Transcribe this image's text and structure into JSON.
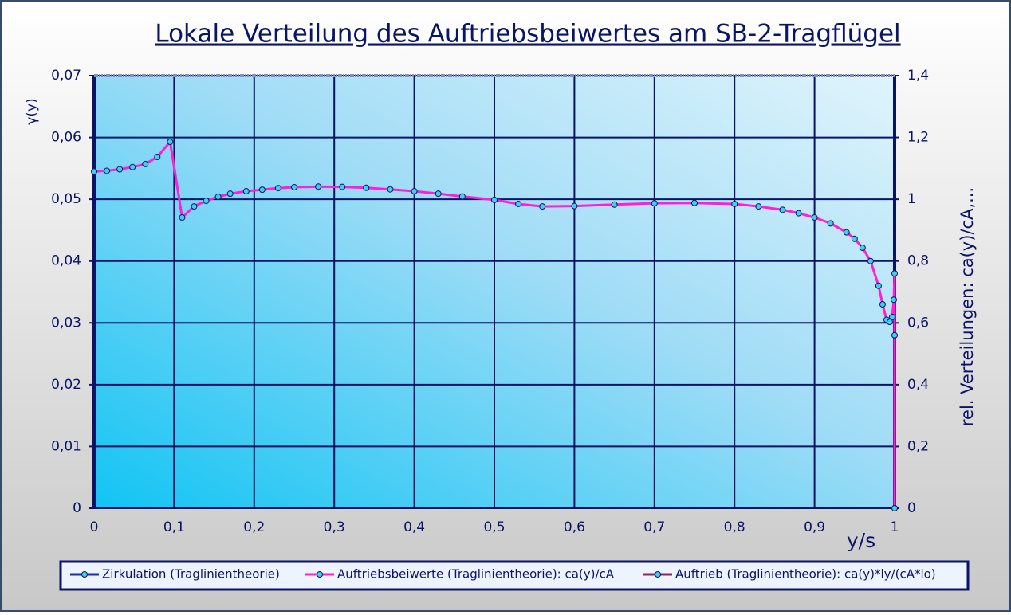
{
  "chart_data": {
    "type": "line",
    "title": "Lokale Verteilung des Auftriebsbeiwertes am SB-2-Tragflügel",
    "x_label": "y/s",
    "y_label": "γ(y)",
    "y2_label": "rel. Verteilungen: ca(y)/cA,...",
    "x": [
      0,
      0.016,
      0.032,
      0.048,
      0.064,
      0.079,
      0.095,
      0.11,
      0.125,
      0.14,
      0.155,
      0.17,
      0.19,
      0.21,
      0.23,
      0.25,
      0.28,
      0.31,
      0.34,
      0.37,
      0.4,
      0.43,
      0.46,
      0.5,
      0.53,
      0.56,
      0.6,
      0.65,
      0.7,
      0.75,
      0.8,
      0.83,
      0.86,
      0.88,
      0.9,
      0.92,
      0.94,
      0.95,
      0.96,
      0.97,
      0.98,
      0.985,
      0.99,
      0.994,
      0.997,
      0.999,
      1,
      1,
      1
    ],
    "series": [
      {
        "name": "Zirkulation (Traglinientheorie)",
        "color": "#1a2fb0",
        "values": [
          null,
          null,
          null,
          null,
          null,
          null,
          null,
          null,
          null,
          null,
          null,
          null,
          null,
          null,
          null,
          null,
          null,
          null,
          null,
          null,
          null,
          null,
          null,
          null,
          null,
          null,
          null,
          null,
          null,
          null,
          null,
          null,
          null,
          null,
          null,
          null,
          null,
          null,
          null,
          null,
          null,
          null,
          null,
          null,
          null,
          null,
          null,
          null,
          null
        ]
      },
      {
        "name": "Auftriebsbeiwerte (Traglinientheorie): ca(y)/cA",
        "color": "#ff1fd6",
        "axis": "y2",
        "values": [
          1.09,
          1.092,
          1.097,
          1.104,
          1.114,
          1.137,
          1.186,
          0.941,
          0.977,
          0.995,
          1.008,
          1.018,
          1.026,
          1.031,
          1.036,
          1.039,
          1.041,
          1.04,
          1.037,
          1.032,
          1.026,
          1.018,
          1.009,
          0.998,
          0.985,
          0.977,
          0.978,
          0.983,
          0.987,
          0.988,
          0.985,
          0.977,
          0.966,
          0.955,
          0.941,
          0.922,
          0.893,
          0.872,
          0.843,
          0.8,
          0.72,
          0.66,
          0.61,
          0.603,
          0.619,
          0.675,
          0.76,
          0.56,
          0
        ]
      },
      {
        "name": "Auftrieb (Traglinientheorie): ca(y)*ly/(cA*lo)",
        "color": "#8a2a5a",
        "axis": "y2",
        "values": [
          null,
          null,
          null,
          null,
          null,
          null,
          null,
          null,
          null,
          null,
          null,
          null,
          null,
          null,
          null,
          null,
          null,
          null,
          null,
          null,
          null,
          null,
          null,
          null,
          null,
          null,
          null,
          null,
          null,
          null,
          null,
          null,
          null,
          null,
          null,
          null,
          null,
          null,
          null,
          null,
          null,
          null,
          null,
          null,
          null,
          null,
          null,
          null,
          null
        ]
      }
    ],
    "marker_color": "#3fd0f0",
    "xlim": [
      0,
      1
    ],
    "xticks": [
      0,
      {
        "value": 0.1,
        "label": "0,1"
      },
      {
        "value": 0.2,
        "label": "0,2"
      },
      {
        "value": 0.3,
        "label": "0,3"
      },
      {
        "value": 0.4,
        "label": "0,4"
      },
      {
        "value": 0.5,
        "label": "0,5"
      },
      {
        "value": 0.6,
        "label": "0,6"
      },
      {
        "value": 0.7,
        "label": "0,7"
      },
      {
        "value": 0.8,
        "label": "0,8"
      },
      {
        "value": 0.9,
        "label": "0,9"
      },
      1
    ],
    "ylim": [
      0,
      0.07
    ],
    "yticks": [
      0,
      {
        "value": 0.01,
        "label": "0,01"
      },
      {
        "value": 0.02,
        "label": "0,02"
      },
      {
        "value": 0.03,
        "label": "0,03"
      },
      {
        "value": 0.04,
        "label": "0,04"
      },
      {
        "value": 0.05,
        "label": "0,05"
      },
      {
        "value": 0.06,
        "label": "0,06"
      },
      {
        "value": 0.07,
        "label": "0,07"
      }
    ],
    "y2lim": [
      0,
      1.4
    ],
    "y2ticks": [
      0,
      {
        "value": 0.2,
        "label": "0,2"
      },
      {
        "value": 0.4,
        "label": "0,4"
      },
      {
        "value": 0.6,
        "label": "0,6"
      },
      {
        "value": 0.8,
        "label": "0,8"
      },
      1,
      {
        "value": 1.2,
        "label": "1,2"
      },
      {
        "value": 1.4,
        "label": "1,4"
      }
    ],
    "grid": true,
    "legend": "bottom"
  }
}
